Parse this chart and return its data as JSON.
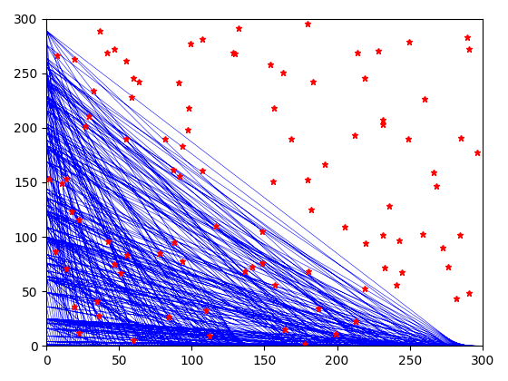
{
  "xlim": [
    0,
    300
  ],
  "ylim": [
    0,
    300
  ],
  "n_points": 300,
  "line_color": "blue",
  "marker_color": "red",
  "marker": "*",
  "marker_size": 5,
  "line_width": 0.4,
  "figsize": [
    5.6,
    4.2
  ],
  "dpi": 100,
  "mod_value": 300,
  "n_random": 100,
  "random_seed": 42
}
